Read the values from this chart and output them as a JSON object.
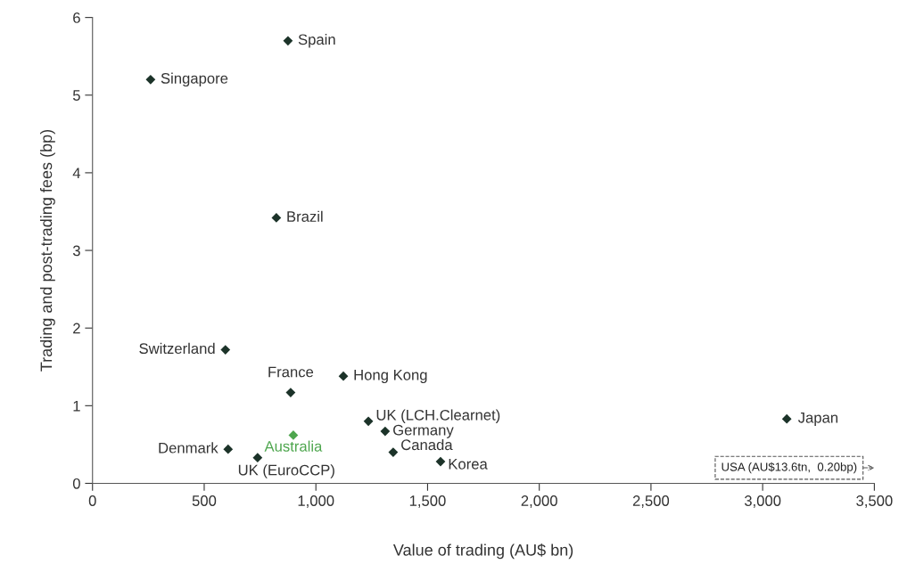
{
  "chart_data": {
    "type": "scatter",
    "xlabel": "Value of trading (AU$ bn)",
    "ylabel": "Trading and post-trading fees (bp)",
    "x": [
      875,
      260,
      823,
      595,
      887,
      1123,
      1235,
      1310,
      1346,
      1558,
      899,
      607,
      739,
      3108
    ],
    "values": [
      5.7,
      5.2,
      3.42,
      1.72,
      1.17,
      1.38,
      0.8,
      0.67,
      0.4,
      0.28,
      0.62,
      0.44,
      0.33,
      0.83
    ],
    "colors": [
      "#1c3329",
      "#1c3329",
      "#1c3329",
      "#1c3329",
      "#1c3329",
      "#1c3329",
      "#1c3329",
      "#1c3329",
      "#1c3329",
      "#1c3329",
      "#4ea64e",
      "#1c3329",
      "#1c3329",
      "#1c3329"
    ],
    "marker": "diamond",
    "grid": false,
    "xlim": [
      0,
      3500
    ],
    "xticks": [
      0,
      {
        "value": 500,
        "label": "500"
      },
      {
        "value": 1000,
        "label": "1,000"
      },
      {
        "value": 1500,
        "label": "1,500"
      },
      {
        "value": 2000,
        "label": "2,000"
      },
      {
        "value": 2500,
        "label": "2,500"
      },
      {
        "value": 3000,
        "label": "3,000"
      },
      {
        "value": 3500,
        "label": "3,500"
      }
    ],
    "ylim": [
      0,
      6
    ],
    "yticks": [
      0,
      1,
      2,
      3,
      4,
      5,
      6
    ],
    "annotations": [
      {
        "text": "Spain",
        "x": 875,
        "y": 5.7
      },
      {
        "text": "Singapore",
        "x": 260,
        "y": 5.2
      },
      {
        "text": "Brazil",
        "x": 823,
        "y": 3.42
      },
      {
        "text": "Switzerland",
        "x": 595,
        "y": 1.72
      },
      {
        "text": "France",
        "x": 887,
        "y": 1.17
      },
      {
        "text": "Hong Kong",
        "x": 1123,
        "y": 1.38
      },
      {
        "text": "UK (LCH.Clearnet)",
        "x": 1235,
        "y": 0.8
      },
      {
        "text": "Germany",
        "x": 1310,
        "y": 0.67
      },
      {
        "text": "Canada",
        "x": 1346,
        "y": 0.4
      },
      {
        "text": "Korea",
        "x": 1558,
        "y": 0.28
      },
      {
        "text": "Australia",
        "x": 899,
        "y": 0.62
      },
      {
        "text": "Denmark",
        "x": 607,
        "y": 0.44
      },
      {
        "text": "UK (EuroCCP)",
        "x": 739,
        "y": 0.33
      },
      {
        "text": "Japan",
        "x": 3108,
        "y": 0.83
      },
      "USA (AU$13.6tn,  0.20bp)"
    ]
  }
}
